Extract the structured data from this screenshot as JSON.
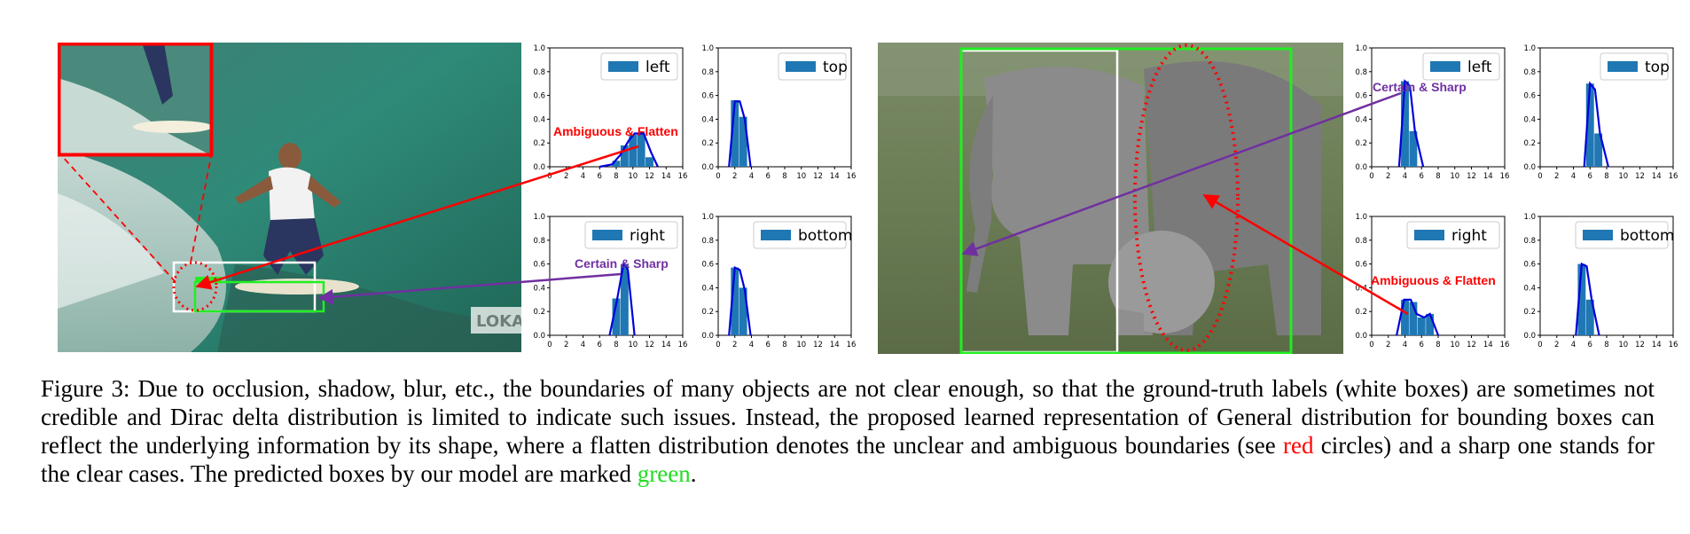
{
  "figure": {
    "left_panel": {
      "annotations": {
        "flat": "Ambiguous & Flatten",
        "sharp": "Certain & Sharp",
        "watermark": "LOKAN"
      },
      "charts": [
        {
          "name": "left",
          "type": "bar",
          "legend": "left",
          "x": [
            8,
            9,
            10,
            11,
            12
          ],
          "values": [
            0.05,
            0.18,
            0.27,
            0.28,
            0.08
          ],
          "line": [
            [
              6,
              0
            ],
            [
              7.5,
              0.02
            ],
            [
              8.5,
              0.1
            ],
            [
              9.5,
              0.22
            ],
            [
              10.2,
              0.28
            ],
            [
              11.3,
              0.28
            ],
            [
              12.2,
              0.12
            ],
            [
              13,
              0
            ]
          ],
          "xlim": [
            0,
            16
          ],
          "ylim": [
            0,
            1.0
          ]
        },
        {
          "name": "top",
          "type": "bar",
          "legend": "top",
          "x": [
            2,
            3
          ],
          "values": [
            0.56,
            0.42
          ],
          "line": [
            [
              1.3,
              0
            ],
            [
              2,
              0.55
            ],
            [
              2.6,
              0.55
            ],
            [
              3.2,
              0.4
            ],
            [
              3.9,
              0
            ]
          ],
          "xlim": [
            0,
            16
          ],
          "ylim": [
            0,
            1.0
          ]
        },
        {
          "name": "right",
          "type": "bar",
          "legend": "right",
          "x": [
            8,
            9
          ],
          "values": [
            0.31,
            0.6
          ],
          "line": [
            [
              7.2,
              0
            ],
            [
              8.1,
              0.3
            ],
            [
              8.9,
              0.61
            ],
            [
              9.4,
              0.55
            ],
            [
              10.2,
              0
            ]
          ],
          "xlim": [
            0,
            16
          ],
          "ylim": [
            0,
            1.0
          ]
        },
        {
          "name": "bottom",
          "type": "bar",
          "legend": "bottom",
          "x": [
            2,
            3
          ],
          "values": [
            0.57,
            0.4
          ],
          "line": [
            [
              1.3,
              0
            ],
            [
              2,
              0.57
            ],
            [
              2.6,
              0.55
            ],
            [
              3.2,
              0.38
            ],
            [
              3.9,
              0
            ]
          ],
          "xlim": [
            0,
            16
          ],
          "ylim": [
            0,
            1.0
          ]
        }
      ]
    },
    "right_panel": {
      "annotations": {
        "sharp": "Certain & Sharp",
        "flat": "Ambiguous & Flatten"
      },
      "charts": [
        {
          "name": "left",
          "type": "bar",
          "legend": "left",
          "x": [
            4,
            5
          ],
          "values": [
            0.72,
            0.3
          ],
          "line": [
            [
              3.3,
              0
            ],
            [
              4,
              0.72
            ],
            [
              4.6,
              0.68
            ],
            [
              5.2,
              0.3
            ],
            [
              6.2,
              0
            ]
          ],
          "xlim": [
            0,
            16
          ],
          "ylim": [
            0,
            1.0
          ]
        },
        {
          "name": "top",
          "type": "bar",
          "legend": "top",
          "x": [
            6,
            7
          ],
          "values": [
            0.7,
            0.28
          ],
          "line": [
            [
              5.3,
              0
            ],
            [
              6,
              0.7
            ],
            [
              6.6,
              0.65
            ],
            [
              7.2,
              0.28
            ],
            [
              8.2,
              0
            ]
          ],
          "xlim": [
            0,
            16
          ],
          "ylim": [
            0,
            1.0
          ]
        },
        {
          "name": "right",
          "type": "bar",
          "legend": "right",
          "x": [
            4,
            5,
            6,
            7
          ],
          "values": [
            0.3,
            0.28,
            0.15,
            0.18
          ],
          "line": [
            [
              3,
              0
            ],
            [
              3.9,
              0.3
            ],
            [
              4.7,
              0.3
            ],
            [
              5.4,
              0.18
            ],
            [
              6.3,
              0.15
            ],
            [
              7,
              0.18
            ],
            [
              8,
              0
            ]
          ],
          "xlim": [
            0,
            16
          ],
          "ylim": [
            0,
            1.0
          ]
        },
        {
          "name": "bottom",
          "type": "bar",
          "legend": "bottom",
          "x": [
            5,
            6
          ],
          "values": [
            0.6,
            0.3
          ],
          "line": [
            [
              4.3,
              0
            ],
            [
              5,
              0.6
            ],
            [
              5.6,
              0.58
            ],
            [
              6.2,
              0.3
            ],
            [
              7.1,
              0
            ]
          ],
          "xlim": [
            0,
            16
          ],
          "ylim": [
            0,
            1.0
          ]
        }
      ]
    },
    "axes": {
      "xticks": [
        "0",
        "2",
        "4",
        "6",
        "8",
        "10",
        "12",
        "14",
        "16"
      ],
      "yticks": [
        "0.0",
        "0.2",
        "0.4",
        "0.6",
        "0.8",
        "1.0"
      ]
    },
    "caption": {
      "part1": "Figure 3: Due to occlusion, shadow, blur, etc., the boundaries of many objects are not clear enough, so that the ground-truth labels (white boxes) are sometimes not credible and Dirac delta distribution is limited to indicate such issues. Instead, the proposed learned representation of General distribution for bounding boxes can reflect the underlying information by its shape, where a flatten distribution denotes the unclear and ambiguous boundaries (see ",
      "red_word": "red",
      "part2": " circles) and a sharp one stands for the clear cases. The predicted boxes by our model are marked ",
      "green_word": "green",
      "part3": "."
    },
    "colors": {
      "bar": "#1f77b4",
      "curve": "#0000dd",
      "annotation_red": "#ff0000",
      "annotation_purple": "#7030a0",
      "pred_green": "#22ee22"
    }
  }
}
